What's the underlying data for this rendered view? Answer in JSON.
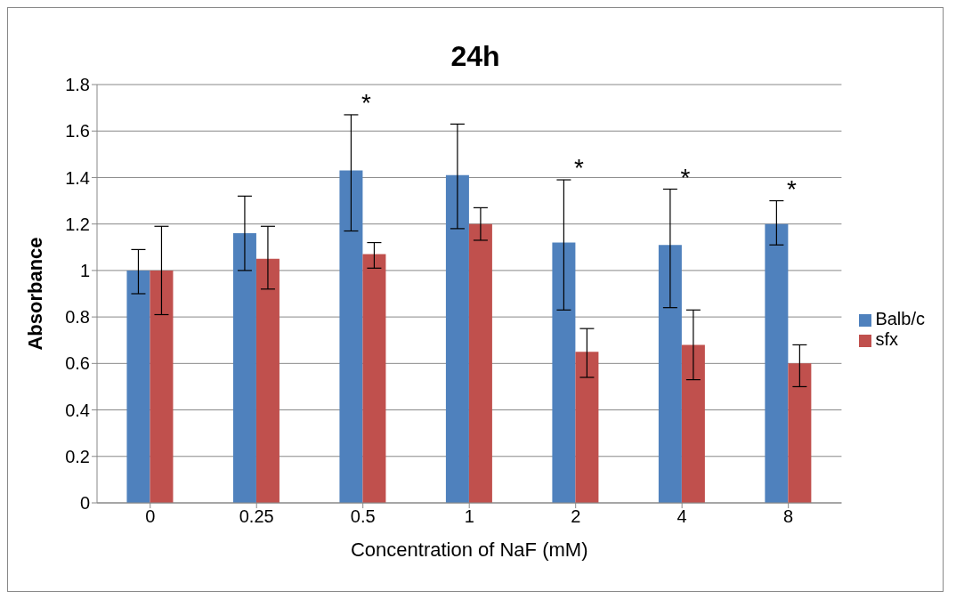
{
  "chart_data": {
    "type": "bar",
    "title": "24h",
    "xlabel": "Concentration of NaF (mM)",
    "ylabel": "Absorbance",
    "categories": [
      "0",
      "0.25",
      "0.5",
      "1",
      "2",
      "4",
      "8"
    ],
    "series": [
      {
        "name": "Balb/c",
        "color": "#4f81bd",
        "values": [
          1.0,
          1.16,
          1.43,
          1.41,
          1.12,
          1.11,
          1.2
        ],
        "value_labels": [
          null,
          null,
          "*",
          null,
          "*",
          "*",
          "*"
        ],
        "errors": [
          [
            0.9,
            1.09
          ],
          [
            1.0,
            1.32
          ],
          [
            1.17,
            1.67
          ],
          [
            1.18,
            1.63
          ],
          [
            0.83,
            1.39
          ],
          [
            0.84,
            1.35
          ],
          [
            1.11,
            1.3
          ]
        ]
      },
      {
        "name": "sfx",
        "color": "#c0504d",
        "values": [
          1.0,
          1.05,
          1.07,
          1.2,
          0.65,
          0.68,
          0.6
        ],
        "errors": [
          [
            0.81,
            1.19
          ],
          [
            0.92,
            1.19
          ],
          [
            1.01,
            1.12
          ],
          [
            1.13,
            1.27
          ],
          [
            0.54,
            0.75
          ],
          [
            0.53,
            0.83
          ],
          [
            0.5,
            0.68
          ]
        ]
      }
    ],
    "ylim": [
      0,
      1.8
    ],
    "yticks": [
      0,
      0.2,
      0.4,
      0.6,
      0.8,
      1,
      1.2,
      1.4,
      1.6,
      1.8
    ],
    "grid": "y",
    "legend": "right"
  }
}
